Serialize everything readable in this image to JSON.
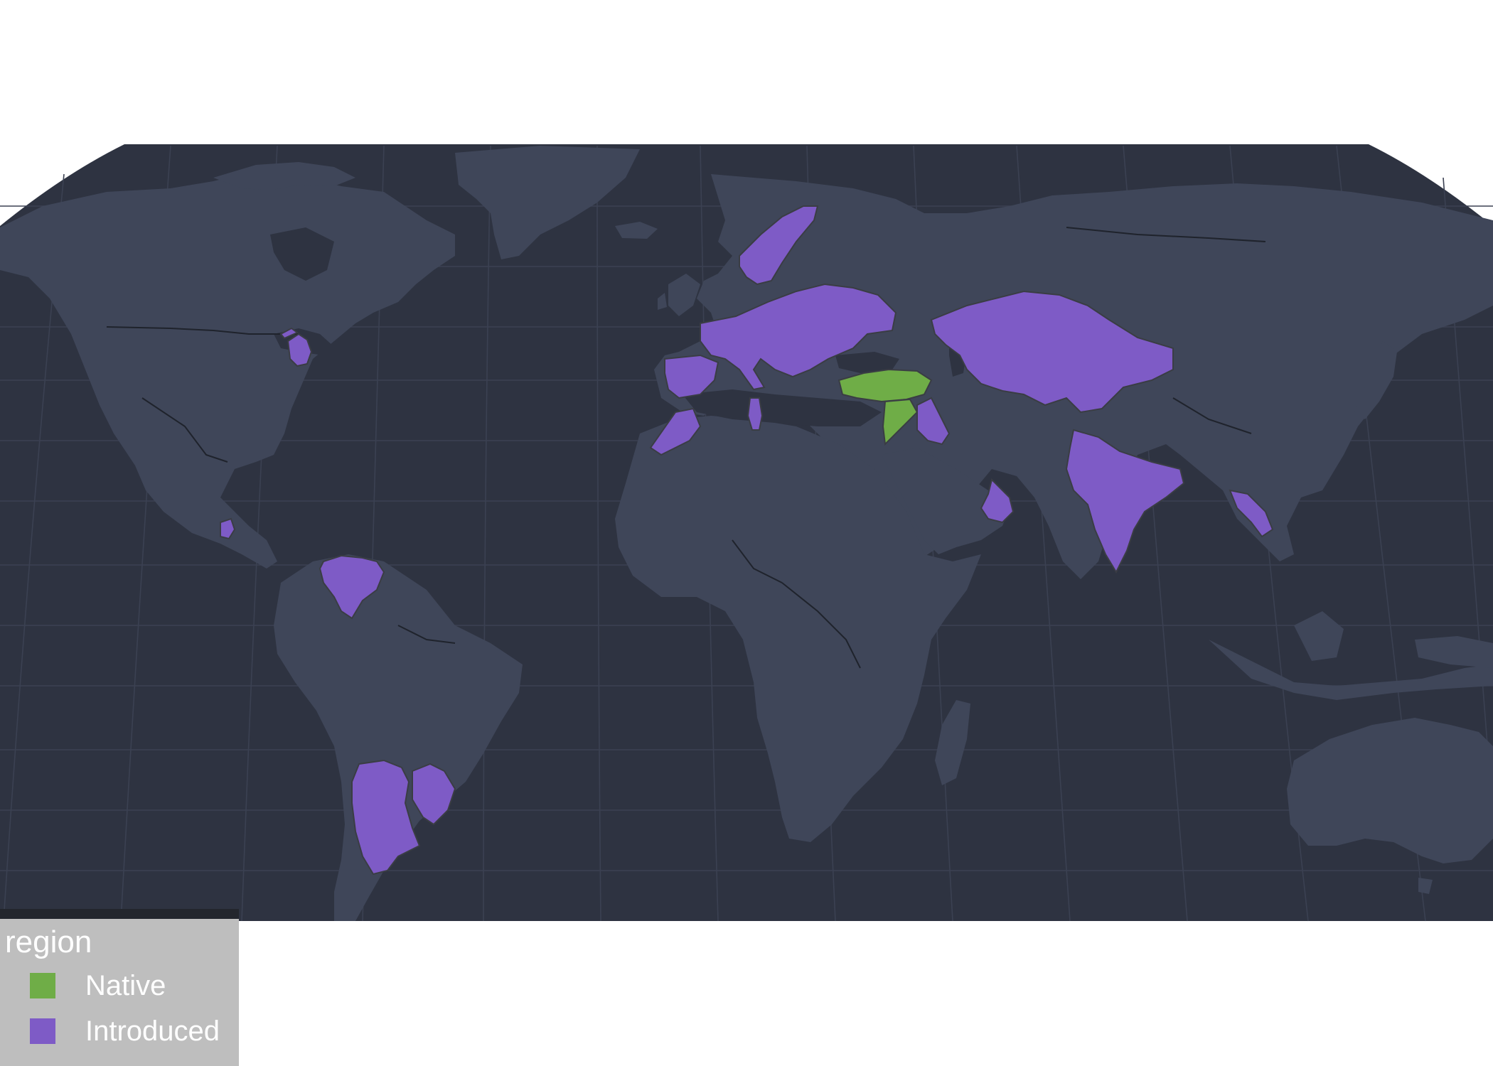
{
  "legend": {
    "title": "region",
    "items": [
      {
        "label": "Native",
        "color": "#6fad47"
      },
      {
        "label": "Introduced",
        "color": "#7e5bc6"
      }
    ]
  },
  "map": {
    "ocean_color": "#2e3341",
    "land_color": "#3f4659",
    "native_color": "#6fad47",
    "introduced_color": "#7e5bc6",
    "regions": {
      "native": [
        "Turkey",
        "Syria"
      ],
      "introduced": [
        "Michigan (USA)",
        "Guatemala",
        "Venezuela",
        "Argentina",
        "Uruguay",
        "Morocco",
        "Tunisia",
        "Spain",
        "Portugal",
        "France",
        "Italy",
        "Germany",
        "Poland",
        "Ukraine",
        "Belarus",
        "Romania",
        "Hungary",
        "Bulgaria",
        "Greece",
        "Norway",
        "Sweden",
        "Iraq",
        "Iran region",
        "Kazakhstan",
        "Uzbekistan",
        "Kyrgyzstan",
        "China (Xinjiang)",
        "Oman",
        "India",
        "Bangladesh",
        "Laos"
      ]
    }
  }
}
